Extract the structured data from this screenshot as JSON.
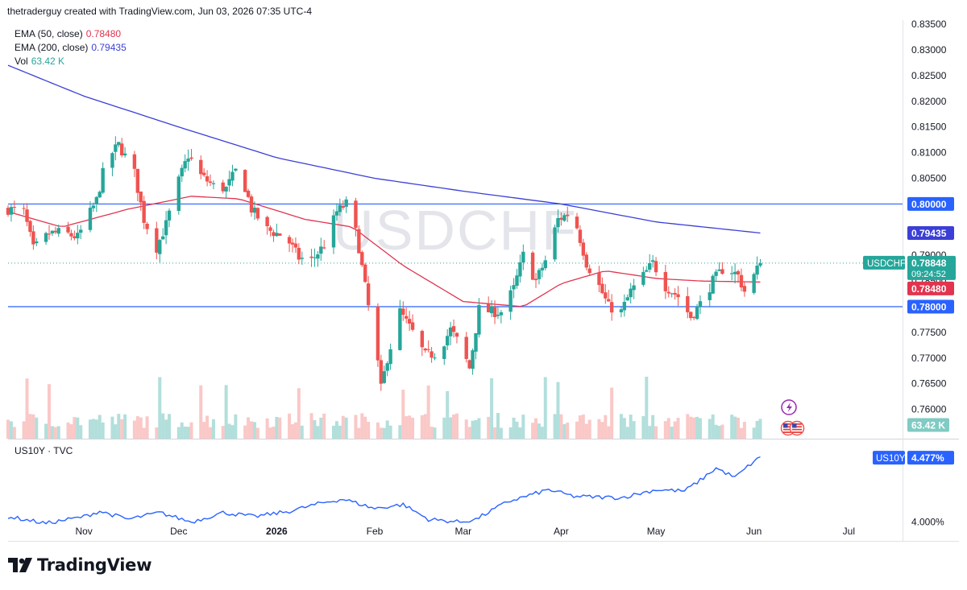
{
  "header": {
    "credit": "thetraderguy created with TradingView.com, Jun 03, 2026 07:35 UTC-4"
  },
  "legend": {
    "ema50": {
      "label": "EMA (50, close)",
      "value": "0.78480",
      "color": "#e2344f"
    },
    "ema200": {
      "label": "EMA (200, close)",
      "value": "0.79435",
      "color": "#3b3fd6"
    },
    "vol": {
      "label": "Vol",
      "value": "63.42 K",
      "color": "#26a69a"
    }
  },
  "watermark": "USDCHF",
  "price_badges": {
    "symbol": "USDCHF",
    "last_price": "0.78848",
    "countdown": "09:24:52",
    "ema50": "0.78480",
    "ema200": "0.79435",
    "level_high": "0.80000",
    "level_low": "0.78000",
    "volume": "63.42 K"
  },
  "sub_pane": {
    "title": "US10Y · TVC",
    "symbol": "US10Y",
    "last_value": "4.477%",
    "axis_label": "4.000%"
  },
  "footer": {
    "brand": "TradingView"
  },
  "colors": {
    "up": "#26a69a",
    "down": "#ef5350",
    "ema50": "#e2344f",
    "ema200": "#3b3fd6",
    "level": "#2962ff",
    "us10y": "#2962ff"
  },
  "chart_data": {
    "type": "candlestick",
    "symbol": "USDCHF",
    "interval": "1D",
    "x_axis": {
      "ticks": [
        {
          "label": "Nov",
          "date": "2025-11-01"
        },
        {
          "label": "Dec",
          "date": "2025-12-01"
        },
        {
          "label": "2026",
          "date": "2026-01-01"
        },
        {
          "label": "Feb",
          "date": "2026-02-01"
        },
        {
          "label": "Mar",
          "date": "2026-03-01"
        },
        {
          "label": "Apr",
          "date": "2026-04-01"
        },
        {
          "label": "May",
          "date": "2026-05-01"
        },
        {
          "label": "Jun",
          "date": "2026-06-01"
        },
        {
          "label": "Jul",
          "date": "2026-07-01"
        }
      ],
      "range": [
        "2025-10-08",
        "2026-07-18"
      ]
    },
    "y_axis": {
      "range": [
        0.7543,
        0.8358
      ],
      "ticks": [
        "0.76000",
        "0.76500",
        "0.77000",
        "0.77500",
        "0.78000",
        "0.78500",
        "0.79000",
        "0.79500",
        "0.80000",
        "0.80500",
        "0.81000",
        "0.81500",
        "0.82000",
        "0.82500",
        "0.83000",
        "0.83500"
      ]
    },
    "horizontal_levels": [
      0.8,
      0.78
    ],
    "waypoints_close": [
      [
        "2025-10-08",
        0.799
      ],
      [
        "2025-10-13",
        0.7985
      ],
      [
        "2025-10-16",
        0.7912
      ],
      [
        "2025-10-21",
        0.7942
      ],
      [
        "2025-10-25",
        0.7945
      ],
      [
        "2025-10-30",
        0.7935
      ],
      [
        "2025-11-05",
        0.8007
      ],
      [
        "2025-11-08",
        0.8085
      ],
      [
        "2025-11-12",
        0.8115
      ],
      [
        "2025-11-17",
        0.806
      ],
      [
        "2025-11-20",
        0.797
      ],
      [
        "2025-11-24",
        0.7915
      ],
      [
        "2025-11-27",
        0.796
      ],
      [
        "2025-12-01",
        0.8045
      ],
      [
        "2025-12-04",
        0.8095
      ],
      [
        "2025-12-08",
        0.8055
      ],
      [
        "2025-12-12",
        0.8035
      ],
      [
        "2025-12-16",
        0.803
      ],
      [
        "2025-12-20",
        0.8075
      ],
      [
        "2025-12-24",
        0.799
      ],
      [
        "2025-12-29",
        0.795
      ],
      [
        "2026-01-04",
        0.7935
      ],
      [
        "2026-01-08",
        0.7895
      ],
      [
        "2026-01-12",
        0.789
      ],
      [
        "2026-01-16",
        0.792
      ],
      [
        "2026-01-20",
        0.7985
      ],
      [
        "2026-01-24",
        0.8005
      ],
      [
        "2026-01-27",
        0.7915
      ],
      [
        "2026-01-30",
        0.78
      ],
      [
        "2026-02-01",
        0.774
      ],
      [
        "2026-02-03",
        0.764
      ],
      [
        "2026-02-05",
        0.77
      ],
      [
        "2026-02-09",
        0.779
      ],
      [
        "2026-02-13",
        0.775
      ],
      [
        "2026-02-17",
        0.7705
      ],
      [
        "2026-02-21",
        0.771
      ],
      [
        "2026-02-25",
        0.7755
      ],
      [
        "2026-02-28",
        0.7725
      ],
      [
        "2026-03-03",
        0.768
      ],
      [
        "2026-03-06",
        0.7795
      ],
      [
        "2026-03-10",
        0.779
      ],
      [
        "2026-03-13",
        0.779
      ],
      [
        "2026-03-17",
        0.7835
      ],
      [
        "2026-03-20",
        0.79
      ],
      [
        "2026-03-24",
        0.785
      ],
      [
        "2026-03-27",
        0.789
      ],
      [
        "2026-03-31",
        0.797
      ],
      [
        "2026-04-03",
        0.798
      ],
      [
        "2026-04-06",
        0.7955
      ],
      [
        "2026-04-09",
        0.7885
      ],
      [
        "2026-04-13",
        0.784
      ],
      [
        "2026-04-16",
        0.78
      ],
      [
        "2026-04-20",
        0.779
      ],
      [
        "2026-04-23",
        0.783
      ],
      [
        "2026-04-27",
        0.786
      ],
      [
        "2026-04-30",
        0.7885
      ],
      [
        "2026-05-04",
        0.784
      ],
      [
        "2026-05-08",
        0.782
      ],
      [
        "2026-05-12",
        0.778
      ],
      [
        "2026-05-15",
        0.7805
      ],
      [
        "2026-05-19",
        0.785
      ],
      [
        "2026-05-23",
        0.788
      ],
      [
        "2026-05-27",
        0.786
      ],
      [
        "2026-05-30",
        0.7815
      ],
      [
        "2026-06-01",
        0.786
      ],
      [
        "2026-06-03",
        0.7885
      ]
    ],
    "ema200_waypoints": [
      [
        "2025-10-08",
        0.827
      ],
      [
        "2025-11-01",
        0.821
      ],
      [
        "2025-12-01",
        0.815
      ],
      [
        "2026-01-01",
        0.809
      ],
      [
        "2026-02-01",
        0.805
      ],
      [
        "2026-03-01",
        0.8025
      ],
      [
        "2026-04-01",
        0.8
      ],
      [
        "2026-05-01",
        0.7965
      ],
      [
        "2026-06-03",
        0.79435
      ]
    ],
    "ema50_waypoints": [
      [
        "2025-10-08",
        0.7985
      ],
      [
        "2025-10-25",
        0.7955
      ],
      [
        "2025-11-15",
        0.799
      ],
      [
        "2025-12-05",
        0.8015
      ],
      [
        "2025-12-20",
        0.801
      ],
      [
        "2026-01-10",
        0.797
      ],
      [
        "2026-01-25",
        0.7955
      ],
      [
        "2026-02-10",
        0.788
      ],
      [
        "2026-03-01",
        0.781
      ],
      [
        "2026-03-20",
        0.78
      ],
      [
        "2026-04-01",
        0.7845
      ],
      [
        "2026-04-15",
        0.787
      ],
      [
        "2026-05-01",
        0.7855
      ],
      [
        "2026-05-15",
        0.785
      ],
      [
        "2026-06-03",
        0.7848
      ]
    ],
    "volume_last": 63420,
    "us10y": {
      "unit": "%",
      "waypoints": [
        [
          "2025-10-08",
          4.04
        ],
        [
          "2025-10-20",
          3.99
        ],
        [
          "2025-11-01",
          4.04
        ],
        [
          "2025-11-06",
          4.08
        ],
        [
          "2025-11-15",
          4.02
        ],
        [
          "2025-11-25",
          4.07
        ],
        [
          "2025-12-05",
          4.0
        ],
        [
          "2025-12-15",
          4.07
        ],
        [
          "2025-12-25",
          4.04
        ],
        [
          "2026-01-05",
          4.08
        ],
        [
          "2026-01-15",
          4.14
        ],
        [
          "2026-01-22",
          4.17
        ],
        [
          "2026-02-01",
          4.1
        ],
        [
          "2026-02-10",
          4.13
        ],
        [
          "2026-02-18",
          4.02
        ],
        [
          "2026-02-28",
          4.0
        ],
        [
          "2026-03-05",
          4.02
        ],
        [
          "2026-03-15",
          4.15
        ],
        [
          "2026-03-28",
          4.24
        ],
        [
          "2026-04-05",
          4.19
        ],
        [
          "2026-04-20",
          4.18
        ],
        [
          "2026-05-01",
          4.24
        ],
        [
          "2026-05-10",
          4.23
        ],
        [
          "2026-05-15",
          4.31
        ],
        [
          "2026-05-20",
          4.4
        ],
        [
          "2026-05-26",
          4.33
        ],
        [
          "2026-06-01",
          4.45
        ],
        [
          "2026-06-03",
          4.477
        ]
      ]
    }
  }
}
